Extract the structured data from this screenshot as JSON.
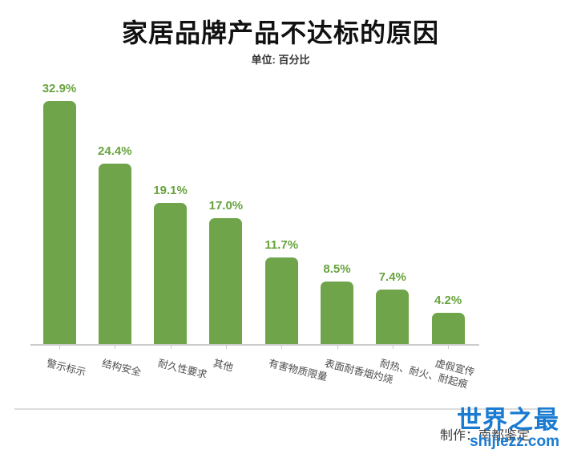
{
  "title": "家居品牌产品不达标的原因",
  "subtitle": "单位: 百分比",
  "chart_data": {
    "type": "bar",
    "title": "家居品牌产品不达标的原因",
    "unit_note": "单位: 百分比",
    "categories": [
      "警示标示",
      "结构安全",
      "耐久性要求",
      "其他",
      "有害物质限量",
      "表面耐香烟灼烧",
      "耐热、耐火、耐起痕",
      "虚假宣传"
    ],
    "values": [
      32.9,
      24.4,
      19.1,
      17.0,
      11.7,
      8.5,
      7.4,
      4.2
    ],
    "value_labels": [
      "32.9%",
      "24.4%",
      "19.1%",
      "17.0%",
      "11.7%",
      "8.5%",
      "7.4%",
      "4.2%"
    ],
    "xlabel": "",
    "ylabel": "",
    "ylim": [
      0,
      35
    ],
    "grid": false,
    "legend": false,
    "bar_color": "#6fa44b",
    "value_label_color": "#68a33e",
    "category_label_color": "#4d4d4d"
  },
  "footer": {
    "caption": "制作：南都鉴定",
    "watermark_line1": "世界之最",
    "watermark_line2": "shijiezz.com",
    "watermark_color": "#1a7bd1"
  }
}
